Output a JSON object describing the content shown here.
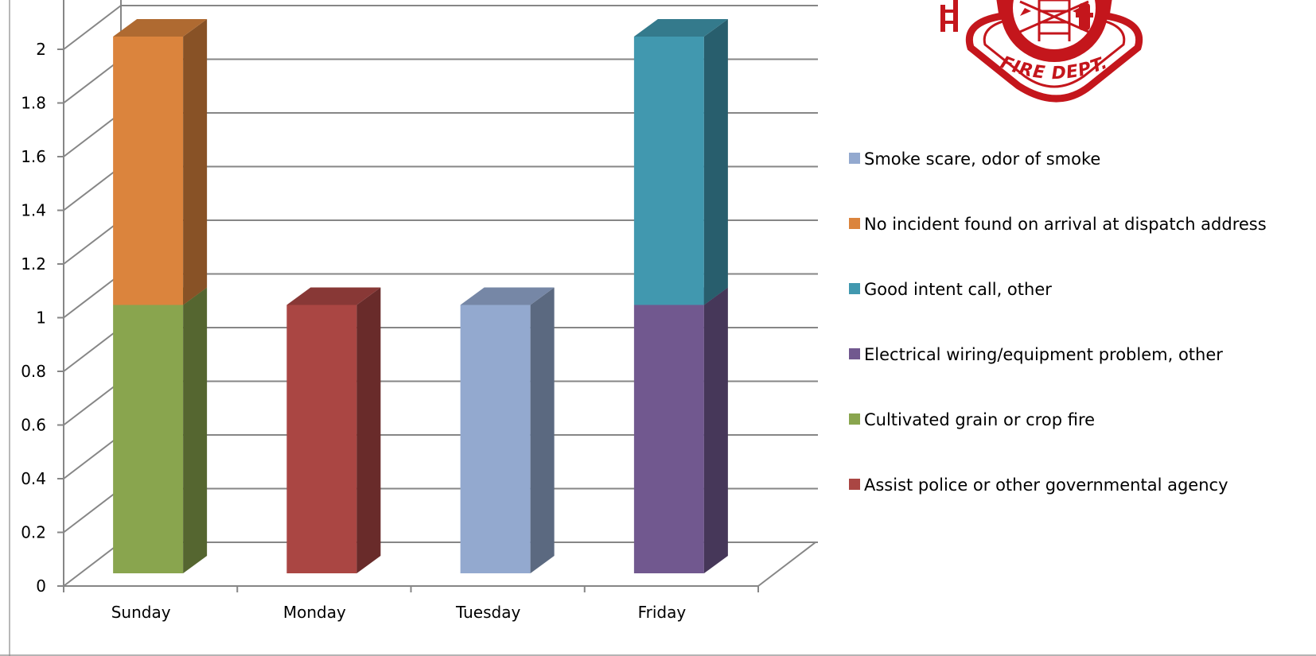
{
  "chart_data": {
    "type": "bar",
    "stacked": true,
    "three_d": true,
    "categories": [
      "Sunday",
      "Monday",
      "Tuesday",
      "Friday"
    ],
    "series": [
      {
        "name": "Assist police or other governmental agency",
        "color": "#aa4643",
        "values": [
          0,
          1,
          0,
          0
        ]
      },
      {
        "name": "Cultivated grain or crop fire",
        "color": "#89a54e",
        "values": [
          1,
          0,
          0,
          0
        ]
      },
      {
        "name": "Electrical wiring/equipment problem, other",
        "color": "#71588f",
        "values": [
          0,
          0,
          0,
          1
        ]
      },
      {
        "name": "Good intent call, other",
        "color": "#4198af",
        "values": [
          0,
          0,
          0,
          1
        ]
      },
      {
        "name": "No incident found on arrival at dispatch address",
        "color": "#db843d",
        "values": [
          1,
          0,
          0,
          0
        ]
      },
      {
        "name": "Smoke scare, odor of smoke",
        "color": "#93a9cf",
        "values": [
          0,
          0,
          1,
          0
        ]
      }
    ],
    "y_ticks": [
      "0",
      "0.2",
      "0.4",
      "0.6",
      "0.8",
      "1",
      "1.2",
      "1.4",
      "1.6",
      "1.8",
      "2"
    ],
    "ylim": [
      0,
      2
    ],
    "grid": true,
    "legend_position": "right",
    "legend_order": [
      5,
      4,
      3,
      2,
      1,
      0
    ]
  },
  "badge": {
    "text": "FIRE DEPT.",
    "icon": "fire-department-maltese-cross-icon",
    "color": "#c4161c"
  }
}
